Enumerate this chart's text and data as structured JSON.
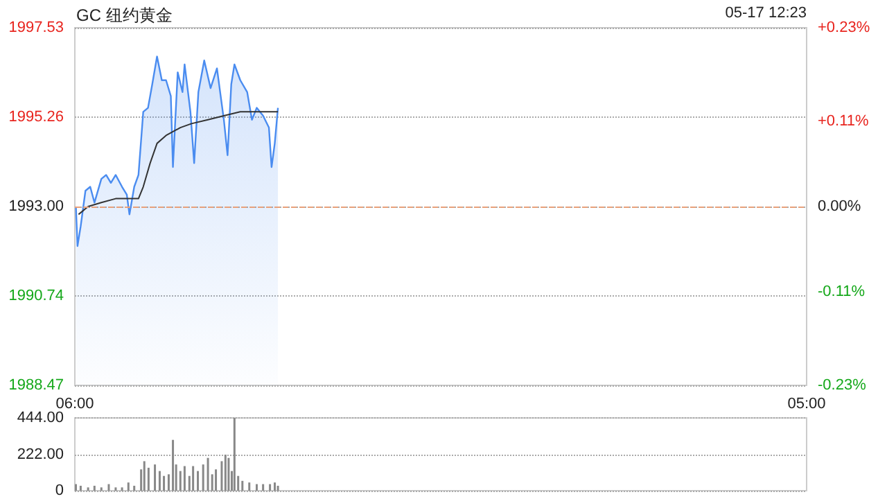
{
  "chart_data": [
    {
      "type": "line",
      "title": "GC 纽约黄金",
      "annotations": [
        "05-17 12:23"
      ],
      "xlim": [
        "--05-17T06:00",
        "--05-18T05:00"
      ],
      "xticks": [
        {
          "value": "--05-17T06:00",
          "label": "06:00"
        },
        {
          "value": "--05-18T05:00",
          "label": "05:00"
        }
      ],
      "ylim": [
        1988.47,
        1997.53
      ],
      "yticks": [
        {
          "value": 1988.47,
          "label": "1988.47"
        },
        {
          "value": 1990.74,
          "label": "1990.74"
        },
        {
          "value": 1993,
          "label": "1993.00"
        },
        {
          "value": 1995.26,
          "label": "1995.26"
        },
        {
          "value": 1997.53,
          "label": "1997.53"
        }
      ],
      "y2lim": [
        -0.23,
        0.23
      ],
      "y2ticks": [
        {
          "value": -0.23,
          "label": "-0.23%"
        },
        {
          "value": -0.11,
          "label": "-0.11%"
        },
        {
          "value": 0,
          "label": "0.00%"
        },
        {
          "value": 0.11,
          "label": "+0.11%"
        },
        {
          "value": 0.23,
          "label": "+0.23%"
        }
      ],
      "grid": "y",
      "marker": "none",
      "ref_lines": [
        {
          "axis": "y",
          "value": 1993,
          "color": "#e8a07a",
          "line_style": "dashed"
        }
      ],
      "series": [
        {
          "type": "area",
          "color": "#4a8cf0",
          "x": [
            "--05-17T06:02",
            "--05-17T06:05",
            "--05-17T06:11",
            "--05-17T06:20",
            "--05-17T06:29",
            "--05-17T06:37",
            "--05-17T06:50",
            "--05-17T06:59",
            "--05-17T07:08",
            "--05-17T07:17",
            "--05-17T07:29",
            "--05-17T07:38",
            "--05-17T07:43",
            "--05-17T07:52",
            "--05-17T08:00",
            "--05-17T08:09",
            "--05-17T08:18",
            "--05-17T08:26",
            "--05-17T08:35",
            "--05-17T08:44",
            "--05-17T08:52",
            "--05-17T09:01",
            "--05-17T09:05",
            "--05-17T09:14",
            "--05-17T09:23",
            "--05-17T09:27",
            "--05-17T09:38",
            "--05-17T09:45",
            "--05-17T09:53",
            "--05-17T10:04",
            "--05-17T10:16",
            "--05-17T10:28",
            "--05-17T10:41",
            "--05-17T10:48",
            "--05-17T10:55",
            "--05-17T11:01",
            "--05-17T11:12",
            "--05-17T11:25",
            "--05-17T11:34",
            "--05-17T11:43",
            "--05-17T11:55",
            "--05-17T12:06",
            "--05-17T12:11",
            "--05-17T12:17",
            "--05-17T12:23"
          ],
          "values": [
            1993.0,
            1992.0,
            1992.5,
            1993.4,
            1993.5,
            1993.1,
            1993.7,
            1993.8,
            1993.6,
            1993.8,
            1993.5,
            1993.3,
            1992.8,
            1993.5,
            1993.8,
            1995.4,
            1995.5,
            1996.1,
            1996.8,
            1996.2,
            1996.2,
            1995.8,
            1994.0,
            1996.4,
            1995.9,
            1996.6,
            1995.4,
            1994.1,
            1995.9,
            1996.7,
            1996.0,
            1996.5,
            1995.2,
            1994.3,
            1996.1,
            1996.6,
            1996.2,
            1995.9,
            1995.2,
            1995.5,
            1995.3,
            1995.0,
            1994.0,
            1994.6,
            1995.5
          ]
        },
        {
          "type": "line",
          "color": "#333333",
          "x": [
            "--05-17T06:07",
            "--05-17T06:25",
            "--05-17T06:50",
            "--05-17T07:17",
            "--05-17T08:00",
            "--05-17T08:09",
            "--05-17T08:22",
            "--05-17T08:35",
            "--05-17T08:52",
            "--05-17T09:19",
            "--05-17T09:40",
            "--05-17T10:11",
            "--05-17T10:41",
            "--05-17T11:12",
            "--05-17T12:23"
          ],
          "values": [
            1992.8,
            1993.0,
            1993.1,
            1993.2,
            1993.2,
            1993.5,
            1994.1,
            1994.6,
            1994.8,
            1995.0,
            1995.1,
            1995.2,
            1995.3,
            1995.4,
            1995.4
          ]
        }
      ]
    },
    {
      "type": "bar",
      "xlim": [
        "--05-17T06:00",
        "--05-18T05:00"
      ],
      "ylim": [
        0,
        444
      ],
      "yticks": [
        {
          "value": 0,
          "label": "0"
        },
        {
          "value": 222,
          "label": "222.00"
        },
        {
          "value": 444,
          "label": "444.00"
        }
      ],
      "tick_labels": "y",
      "grid": "y",
      "series": [
        {
          "color": "#888888",
          "x": [
            "--05-17T06:02",
            "--05-17T06:11",
            "--05-17T06:25",
            "--05-17T06:37",
            "--05-17T06:50",
            "--05-17T07:04",
            "--05-17T07:17",
            "--05-17T07:29",
            "--05-17T07:41",
            "--05-17T07:52",
            "--05-17T08:05",
            "--05-17T08:11",
            "--05-17T08:19",
            "--05-17T08:31",
            "--05-17T08:40",
            "--05-17T08:48",
            "--05-17T08:57",
            "--05-17T09:05",
            "--05-17T09:11",
            "--05-17T09:19",
            "--05-17T09:27",
            "--05-17T09:36",
            "--05-17T09:43",
            "--05-17T09:52",
            "--05-17T10:02",
            "--05-17T10:11",
            "--05-17T10:19",
            "--05-17T10:26",
            "--05-17T10:37",
            "--05-17T10:44",
            "--05-17T10:50",
            "--05-17T10:56",
            "--05-17T11:01",
            "--05-17T11:08",
            "--05-17T11:16",
            "--05-17T11:29",
            "--05-17T11:43",
            "--05-17T11:55",
            "--05-17T12:08",
            "--05-17T12:17",
            "--05-17T12:23"
          ],
          "values": [
            40,
            30,
            20,
            30,
            20,
            40,
            20,
            20,
            50,
            30,
            130,
            180,
            140,
            160,
            120,
            90,
            100,
            310,
            160,
            120,
            150,
            90,
            150,
            120,
            160,
            200,
            100,
            130,
            180,
            220,
            200,
            120,
            444,
            90,
            60,
            50,
            40,
            40,
            40,
            50,
            30
          ]
        }
      ]
    }
  ]
}
